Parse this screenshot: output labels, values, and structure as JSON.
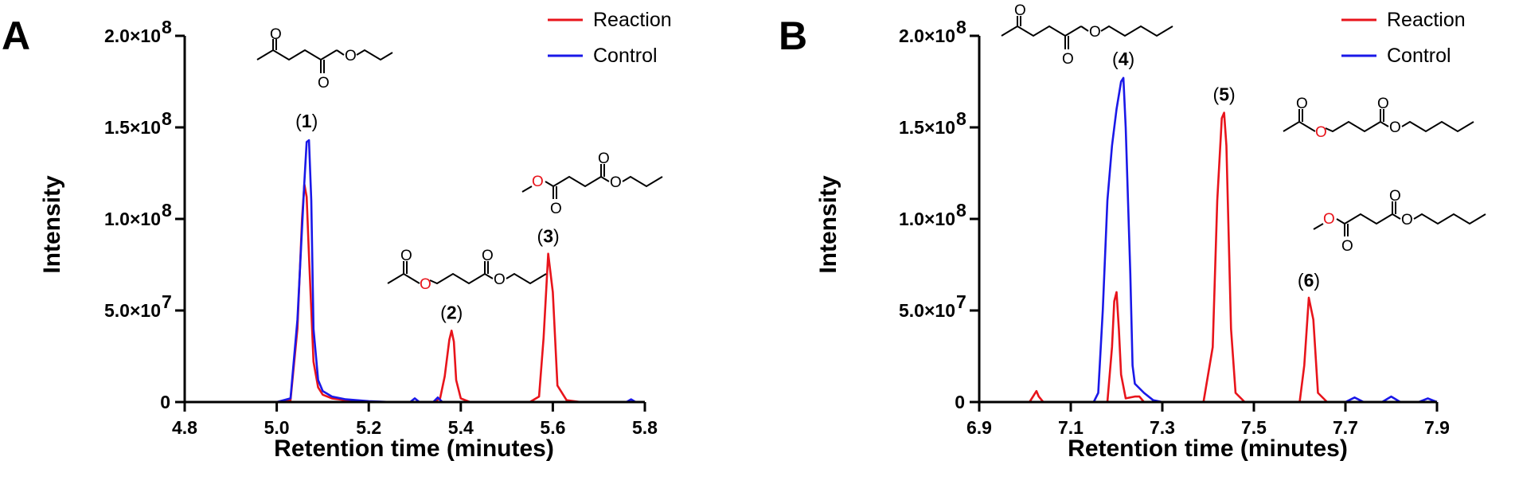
{
  "chart_data": [
    {
      "panel": "A",
      "type": "line",
      "xlabel": "Retention time (minutes)",
      "ylabel": "Intensity",
      "xlim": [
        4.8,
        5.8
      ],
      "ylim": [
        0,
        200000000
      ],
      "x_ticks": [
        "4.8",
        "5.0",
        "5.2",
        "5.4",
        "5.6",
        "5.8"
      ],
      "x_tick_values": [
        4.8,
        5.0,
        5.2,
        5.4,
        5.6,
        5.8
      ],
      "y_ticks": [
        "0",
        "5.0×10",
        "1.0×10",
        "1.5×10",
        "2.0×10"
      ],
      "y_tick_exponents": [
        "",
        "7",
        "8",
        "8",
        "8"
      ],
      "y_tick_values": [
        0,
        50000000,
        100000000,
        150000000,
        200000000
      ],
      "legend_position": "top-right",
      "grid": false,
      "series": [
        {
          "name": "Reaction",
          "color": "#e8141b",
          "x": [
            4.8,
            5.0,
            5.03,
            5.045,
            5.055,
            5.06,
            5.065,
            5.07,
            5.08,
            5.09,
            5.1,
            5.12,
            5.15,
            5.2,
            5.34,
            5.355,
            5.365,
            5.375,
            5.38,
            5.385,
            5.39,
            5.4,
            5.42,
            5.55,
            5.57,
            5.58,
            5.59,
            5.6,
            5.61,
            5.63,
            5.66,
            5.8
          ],
          "y": [
            0,
            0,
            1000000,
            40000000,
            100000000,
            119000000,
            112000000,
            80000000,
            22000000,
            8000000,
            4000000,
            2000000,
            1000000,
            0,
            0,
            2000000,
            14000000,
            34000000,
            39000000,
            33000000,
            12000000,
            2000000,
            0,
            0,
            3000000,
            35000000,
            81000000,
            60000000,
            9000000,
            1000000,
            0,
            0
          ]
        },
        {
          "name": "Control",
          "color": "#1a18e8",
          "x": [
            4.8,
            5.0,
            5.03,
            5.045,
            5.06,
            5.065,
            5.07,
            5.075,
            5.08,
            5.09,
            5.1,
            5.12,
            5.15,
            5.2,
            5.25,
            5.29,
            5.3,
            5.31,
            5.34,
            5.35,
            5.36,
            5.4,
            5.76,
            5.77,
            5.78,
            5.8
          ],
          "y": [
            0,
            0,
            2000000,
            45000000,
            120000000,
            142000000,
            143000000,
            110000000,
            40000000,
            12000000,
            6000000,
            3000000,
            1500000,
            500000,
            0,
            0,
            2000000,
            0,
            0,
            2500000,
            0,
            0,
            0,
            1500000,
            0,
            0
          ]
        }
      ],
      "peaks": [
        {
          "label": "(1)",
          "num": "1",
          "x": 5.065,
          "y": 143000000
        },
        {
          "label": "(2)",
          "num": "2",
          "x": 5.38,
          "y": 39000000
        },
        {
          "label": "(3)",
          "num": "3",
          "x": 5.59,
          "y": 81000000
        }
      ]
    },
    {
      "panel": "B",
      "type": "line",
      "xlabel": "Retention time (minutes)",
      "ylabel": "Intensity",
      "xlim": [
        6.9,
        7.9
      ],
      "ylim": [
        0,
        200000000
      ],
      "x_ticks": [
        "6.9",
        "7.1",
        "7.3",
        "7.5",
        "7.7",
        "7.9"
      ],
      "x_tick_values": [
        6.9,
        7.1,
        7.3,
        7.5,
        7.7,
        7.9
      ],
      "y_ticks": [
        "0",
        "5.0×10",
        "1.0×10",
        "1.5×10",
        "2.0×10"
      ],
      "y_tick_exponents": [
        "",
        "7",
        "8",
        "8",
        "8"
      ],
      "y_tick_values": [
        0,
        50000000,
        100000000,
        150000000,
        200000000
      ],
      "legend_position": "top-right",
      "grid": false,
      "series": [
        {
          "name": "Reaction",
          "color": "#e8141b",
          "x": [
            6.9,
            7.01,
            7.02,
            7.025,
            7.03,
            7.04,
            7.18,
            7.19,
            7.195,
            7.2,
            7.205,
            7.21,
            7.22,
            7.24,
            7.25,
            7.26,
            7.39,
            7.41,
            7.42,
            7.43,
            7.435,
            7.44,
            7.45,
            7.46,
            7.48,
            7.6,
            7.61,
            7.62,
            7.63,
            7.64,
            7.66,
            7.9
          ],
          "y": [
            0,
            0,
            4000000,
            6000000,
            3000000,
            0,
            0,
            30000000,
            55000000,
            60000000,
            40000000,
            15000000,
            2000000,
            3000000,
            3000000,
            0,
            0,
            30000000,
            110000000,
            155000000,
            158000000,
            140000000,
            40000000,
            5000000,
            0,
            0,
            20000000,
            57000000,
            45000000,
            5000000,
            0,
            0
          ]
        },
        {
          "name": "Control",
          "color": "#1a18e8",
          "x": [
            6.9,
            7.15,
            7.16,
            7.17,
            7.18,
            7.19,
            7.2,
            7.21,
            7.215,
            7.22,
            7.23,
            7.235,
            7.24,
            7.26,
            7.28,
            7.3,
            7.7,
            7.72,
            7.74,
            7.78,
            7.8,
            7.82,
            7.86,
            7.88,
            7.9
          ],
          "y": [
            0,
            0,
            5000000,
            50000000,
            110000000,
            140000000,
            160000000,
            175000000,
            177000000,
            150000000,
            70000000,
            20000000,
            10000000,
            5000000,
            1000000,
            0,
            0,
            2500000,
            0,
            0,
            3000000,
            0,
            0,
            2000000,
            0
          ]
        }
      ],
      "peaks": [
        {
          "label": "(4)",
          "num": "4",
          "x": 7.215,
          "y": 177000000
        },
        {
          "label": "(5)",
          "num": "5",
          "x": 7.435,
          "y": 158000000
        },
        {
          "label": "(6)",
          "num": "6",
          "x": 7.62,
          "y": 57000000
        }
      ]
    }
  ]
}
